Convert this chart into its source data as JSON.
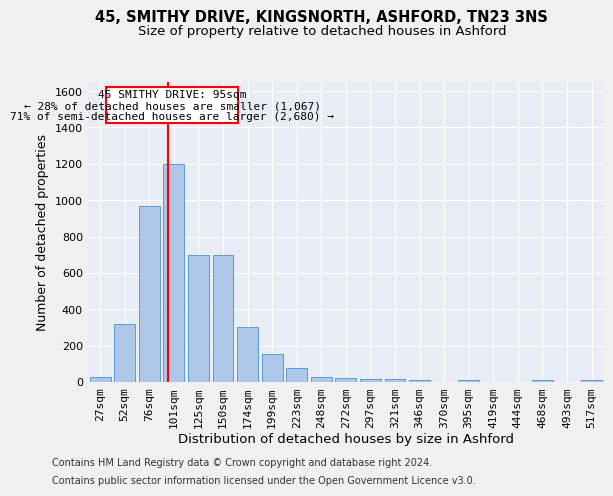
{
  "title1": "45, SMITHY DRIVE, KINGSNORTH, ASHFORD, TN23 3NS",
  "title2": "Size of property relative to detached houses in Ashford",
  "xlabel": "Distribution of detached houses by size in Ashford",
  "ylabel": "Number of detached properties",
  "footnote1": "Contains HM Land Registry data © Crown copyright and database right 2024.",
  "footnote2": "Contains public sector information licensed under the Open Government Licence v3.0.",
  "bar_labels": [
    "27sqm",
    "52sqm",
    "76sqm",
    "101sqm",
    "125sqm",
    "150sqm",
    "174sqm",
    "199sqm",
    "223sqm",
    "248sqm",
    "272sqm",
    "297sqm",
    "321sqm",
    "346sqm",
    "370sqm",
    "395sqm",
    "419sqm",
    "444sqm",
    "468sqm",
    "493sqm",
    "517sqm"
  ],
  "bar_values": [
    30,
    320,
    970,
    1200,
    700,
    700,
    305,
    155,
    75,
    30,
    20,
    15,
    15,
    10,
    0,
    10,
    0,
    0,
    10,
    0,
    10
  ],
  "bar_color": "#aec6e8",
  "bar_edge_color": "#5b9bd5",
  "annotation_title": "45 SMITHY DRIVE: 95sqm",
  "annotation_line1": "← 28% of detached houses are smaller (1,067)",
  "annotation_line2": "71% of semi-detached houses are larger (2,680) →",
  "ylim": [
    0,
    1650
  ],
  "yticks": [
    0,
    200,
    400,
    600,
    800,
    1000,
    1200,
    1400,
    1600
  ],
  "background_color": "#e8edf5",
  "grid_color": "#ffffff",
  "title1_fontsize": 10.5,
  "title2_fontsize": 9.5,
  "axis_label_fontsize": 9,
  "tick_fontsize": 8,
  "footnote_fontsize": 7
}
